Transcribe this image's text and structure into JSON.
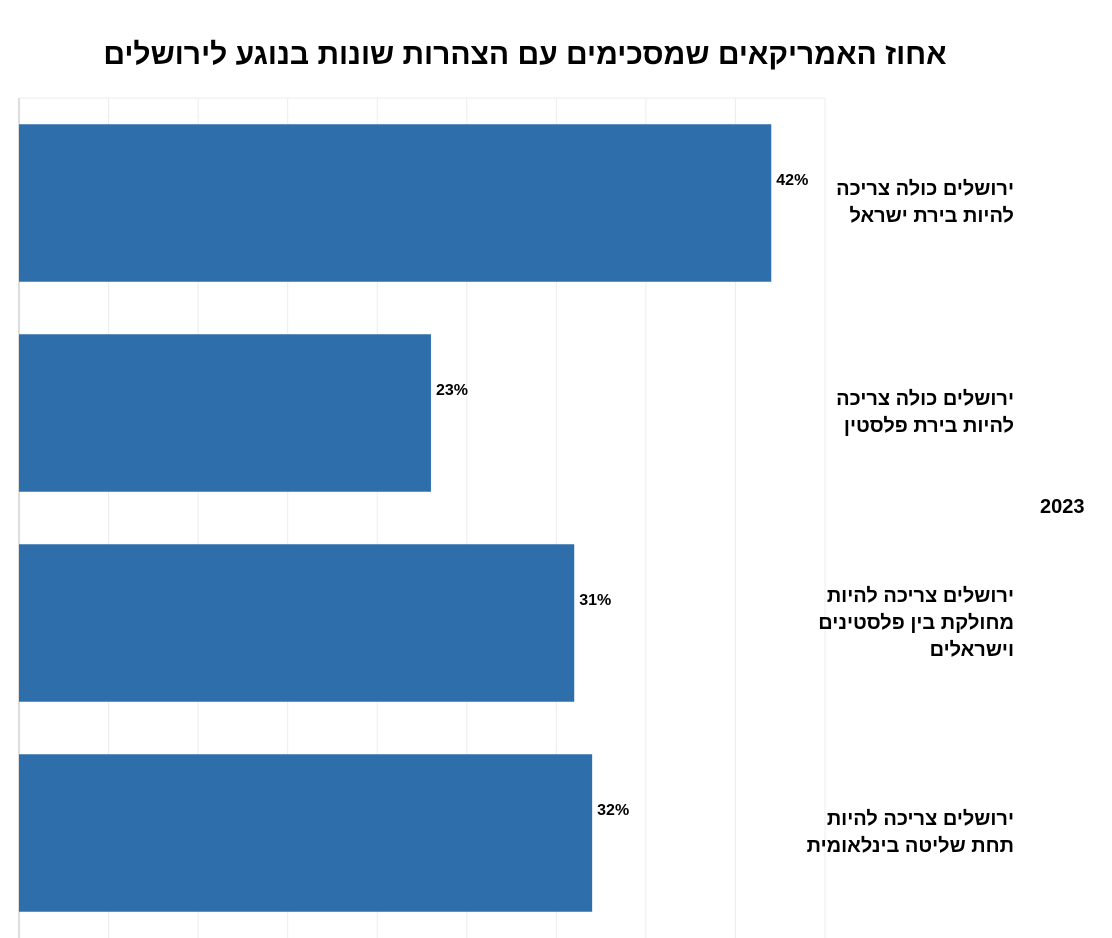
{
  "chart_data": {
    "type": "bar",
    "orientation": "horizontal",
    "title": "אחוז האמריקאים שמסכימים עם הצהרות שונות בנוגע לירושלים",
    "group_label": "2023",
    "categories": [
      "ירושלים כולה צריכה להיות בירת ישראל",
      "ירושלים כולה צריכה להיות בירת פלסטין",
      "ירושלים צריכה להיות מחולקת בין פלסטינים וישראלים",
      "ירושלים צריכה להיות תחת שליטה בינלאומית"
    ],
    "values": [
      42,
      23,
      31,
      32
    ],
    "value_labels": [
      "42%",
      "23%",
      "31%",
      "32%"
    ],
    "xlim": [
      0,
      45
    ],
    "grid": true,
    "bar_color": "#2e6fab"
  }
}
